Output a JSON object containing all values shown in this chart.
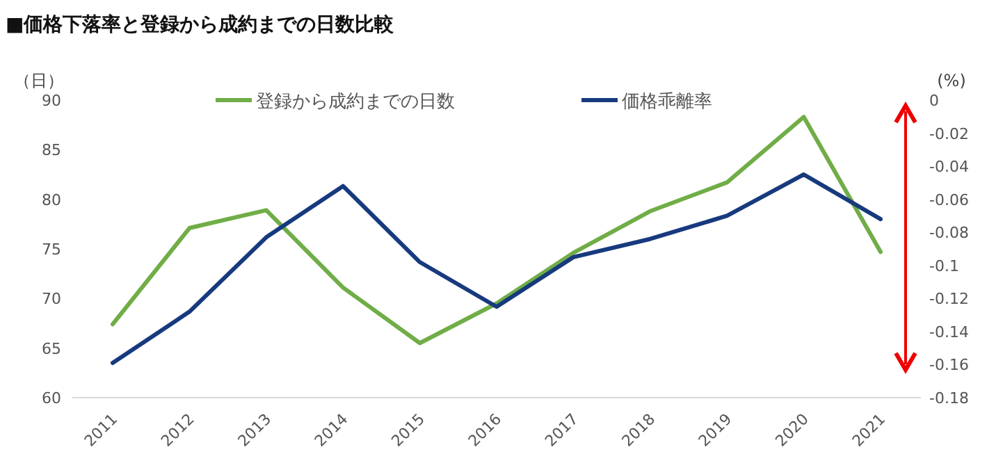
{
  "chart_data": {
    "type": "line",
    "title": "■価格下落率と登録から成約までの日数比較",
    "ylabel": "（日）",
    "y2label": "(%)",
    "categories": [
      "2011",
      "2012",
      "2013",
      "2014",
      "2015",
      "2016",
      "2017",
      "2018",
      "2019",
      "2020",
      "2021"
    ],
    "series": [
      {
        "name": "登録から成約までの日数",
        "color": "#70ad47",
        "values": [
          67.4,
          77.1,
          78.9,
          71.1,
          65.5,
          69.5,
          74.6,
          78.8,
          81.7,
          88.3,
          74.7
        ]
      },
      {
        "name": "価格乖離率",
        "color": "#173a7e",
        "axis": "y2",
        "values": [
          -0.159,
          -0.128,
          -0.083,
          -0.052,
          -0.098,
          -0.125,
          -0.095,
          -0.084,
          -0.07,
          -0.045,
          -0.072
        ]
      }
    ],
    "ylim": [
      60,
      90
    ],
    "yticks": [
      60,
      65,
      70,
      75,
      80,
      85,
      90
    ],
    "y2lim": [
      -0.18,
      0
    ],
    "y2ticks": [
      -0.18,
      -0.16,
      -0.14,
      -0.12,
      -0.1,
      -0.08,
      -0.06,
      -0.04,
      -0.02,
      0
    ],
    "grid": false,
    "legend": "top",
    "marker": "none",
    "line_style": "solid"
  }
}
